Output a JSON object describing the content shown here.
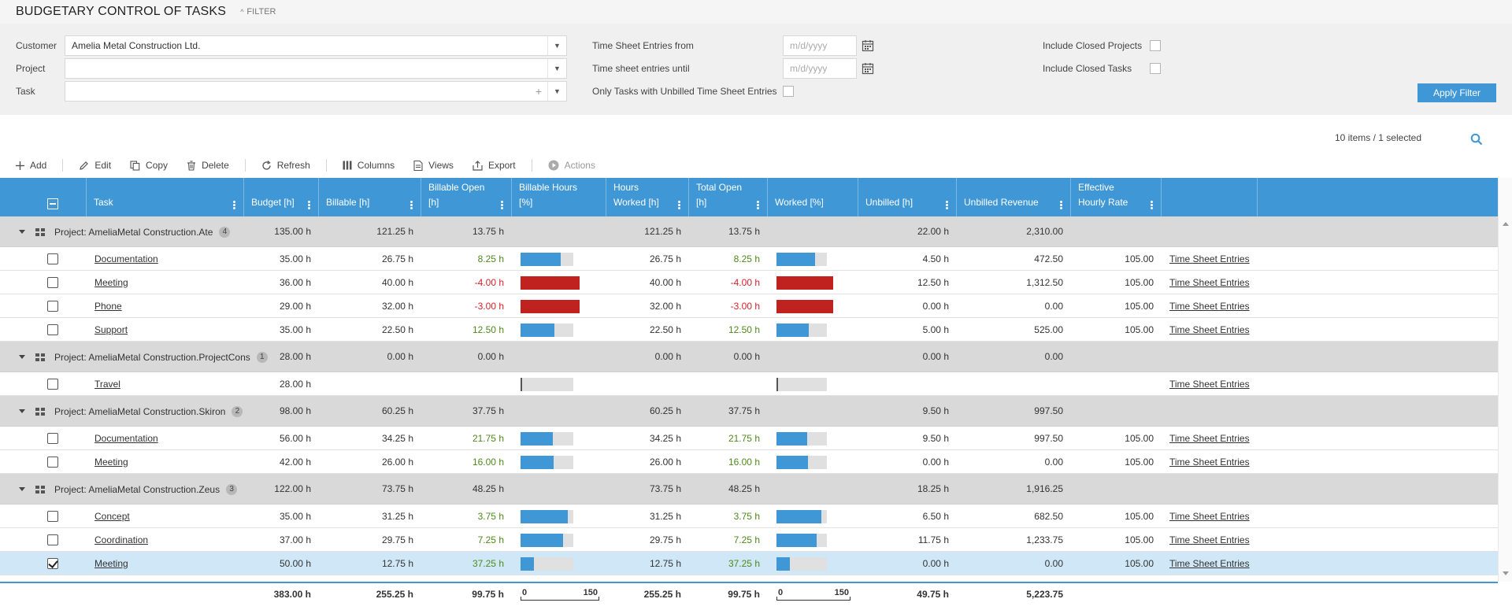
{
  "title": "BUDGETARY CONTROL OF TASKS",
  "filter_toggle": "FILTER",
  "filters": {
    "customer_label": "Customer",
    "customer_value": "Amelia Metal Construction Ltd.",
    "project_label": "Project",
    "project_value": "",
    "task_label": "Task",
    "task_value": "",
    "ts_from_label": "Time Sheet Entries from",
    "ts_until_label": "Time sheet entries until",
    "date_placeholder": "m/d/yyyy",
    "unbilled_only_label": "Only Tasks with Unbilled Time Sheet Entries",
    "closed_projects_label": "Include Closed Projects",
    "closed_tasks_label": "Include Closed Tasks",
    "apply_label": "Apply Filter"
  },
  "items_count": "10 items / 1 selected",
  "toolbar": {
    "add": "Add",
    "edit": "Edit",
    "copy": "Copy",
    "delete": "Delete",
    "refresh": "Refresh",
    "columns": "Columns",
    "views": "Views",
    "export": "Export",
    "actions": "Actions"
  },
  "columns": {
    "task": "Task",
    "budget": "Budget [h]",
    "billable": "Billable [h]",
    "billable_open_1": "Billable Open",
    "billable_open_2": "[h]",
    "billable_hours_1": "Billable Hours",
    "billable_hours_2": "[%]",
    "hours_worked_1": "Hours",
    "hours_worked_2": "Worked [h]",
    "total_open_1": "Total Open",
    "total_open_2": "[h]",
    "worked_pct": "Worked [%]",
    "unbilled": "Unbilled [h]",
    "unbilled_revenue": "Unbilled Revenue",
    "rate_1": "Effective",
    "rate_2": "Hourly Rate"
  },
  "link_label": "Time Sheet Entries",
  "groups": [
    {
      "title": "Project: AmeliaMetal Construction.Ate",
      "count": "4",
      "budget": "135.00 h",
      "billable": "121.25 h",
      "billable_open": "13.75 h",
      "hours_worked": "121.25 h",
      "total_open": "13.75 h",
      "unbilled": "22.00 h",
      "unbilled_revenue": "2,310.00",
      "tasks": [
        {
          "name": "Documentation",
          "budget": "35.00 h",
          "billable": "26.75 h",
          "billable_open": "8.25 h",
          "billable_pct": 0.76,
          "hours_worked": "26.75 h",
          "total_open": "8.25 h",
          "worked_pct": 0.76,
          "unbilled": "4.50 h",
          "unbilled_revenue": "472.50",
          "rate": "105.00",
          "checked": false
        },
        {
          "name": "Meeting",
          "budget": "36.00 h",
          "billable": "40.00 h",
          "billable_open": "-4.00 h",
          "billable_pct": 1.11,
          "hours_worked": "40.00 h",
          "total_open": "-4.00 h",
          "worked_pct": 1.11,
          "unbilled": "12.50 h",
          "unbilled_revenue": "1,312.50",
          "rate": "105.00",
          "checked": false
        },
        {
          "name": "Phone",
          "budget": "29.00 h",
          "billable": "32.00 h",
          "billable_open": "-3.00 h",
          "billable_pct": 1.1,
          "hours_worked": "32.00 h",
          "total_open": "-3.00 h",
          "worked_pct": 1.1,
          "unbilled": "0.00 h",
          "unbilled_revenue": "0.00",
          "rate": "105.00",
          "checked": false
        },
        {
          "name": "Support",
          "budget": "35.00 h",
          "billable": "22.50 h",
          "billable_open": "12.50 h",
          "billable_pct": 0.64,
          "hours_worked": "22.50 h",
          "total_open": "12.50 h",
          "worked_pct": 0.64,
          "unbilled": "5.00 h",
          "unbilled_revenue": "525.00",
          "rate": "105.00",
          "checked": false
        }
      ]
    },
    {
      "title": "Project: AmeliaMetal Construction.ProjectCons",
      "count": "1",
      "budget": "28.00 h",
      "billable": "0.00 h",
      "billable_open": "0.00 h",
      "hours_worked": "0.00 h",
      "total_open": "0.00 h",
      "unbilled": "0.00 h",
      "unbilled_revenue": "0.00",
      "tasks": [
        {
          "name": "Travel",
          "budget": "28.00 h",
          "billable": "",
          "billable_open": "",
          "billable_pct": 0,
          "hours_worked": "",
          "total_open": "",
          "worked_pct": 0,
          "unbilled": "",
          "unbilled_revenue": "",
          "rate": "",
          "checked": false
        }
      ]
    },
    {
      "title": "Project: AmeliaMetal Construction.Skiron",
      "count": "2",
      "budget": "98.00 h",
      "billable": "60.25 h",
      "billable_open": "37.75 h",
      "hours_worked": "60.25 h",
      "total_open": "37.75 h",
      "unbilled": "9.50 h",
      "unbilled_revenue": "997.50",
      "tasks": [
        {
          "name": "Documentation",
          "budget": "56.00 h",
          "billable": "34.25 h",
          "billable_open": "21.75 h",
          "billable_pct": 0.61,
          "hours_worked": "34.25 h",
          "total_open": "21.75 h",
          "worked_pct": 0.61,
          "unbilled": "9.50 h",
          "unbilled_revenue": "997.50",
          "rate": "105.00",
          "checked": false
        },
        {
          "name": "Meeting",
          "budget": "42.00 h",
          "billable": "26.00 h",
          "billable_open": "16.00 h",
          "billable_pct": 0.62,
          "hours_worked": "26.00 h",
          "total_open": "16.00 h",
          "worked_pct": 0.62,
          "unbilled": "0.00 h",
          "unbilled_revenue": "0.00",
          "rate": "105.00",
          "checked": false
        }
      ]
    },
    {
      "title": "Project: AmeliaMetal Construction.Zeus",
      "count": "3",
      "budget": "122.00 h",
      "billable": "73.75 h",
      "billable_open": "48.25 h",
      "hours_worked": "73.75 h",
      "total_open": "48.25 h",
      "unbilled": "18.25 h",
      "unbilled_revenue": "1,916.25",
      "tasks": [
        {
          "name": "Concept",
          "budget": "35.00 h",
          "billable": "31.25 h",
          "billable_open": "3.75 h",
          "billable_pct": 0.89,
          "hours_worked": "31.25 h",
          "total_open": "3.75 h",
          "worked_pct": 0.89,
          "unbilled": "6.50 h",
          "unbilled_revenue": "682.50",
          "rate": "105.00",
          "checked": false
        },
        {
          "name": "Coordination",
          "budget": "37.00 h",
          "billable": "29.75 h",
          "billable_open": "7.25 h",
          "billable_pct": 0.8,
          "hours_worked": "29.75 h",
          "total_open": "7.25 h",
          "worked_pct": 0.8,
          "unbilled": "11.75 h",
          "unbilled_revenue": "1,233.75",
          "rate": "105.00",
          "checked": false
        },
        {
          "name": "Meeting",
          "budget": "50.00 h",
          "billable": "12.75 h",
          "billable_open": "37.25 h",
          "billable_pct": 0.26,
          "hours_worked": "12.75 h",
          "total_open": "37.25 h",
          "worked_pct": 0.26,
          "unbilled": "0.00 h",
          "unbilled_revenue": "0.00",
          "rate": "105.00",
          "checked": true
        }
      ]
    }
  ],
  "totals": {
    "budget": "383.00 h",
    "billable": "255.25 h",
    "billable_open": "99.75 h",
    "scale_min": "0",
    "scale_max": "150",
    "hours_worked": "255.25 h",
    "total_open": "99.75 h",
    "unbilled": "49.75 h",
    "unbilled_revenue": "5,223.75"
  },
  "colors": {
    "accent": "#3f97d6",
    "bar_ok": "#3f97d6",
    "bar_over": "#c0231f",
    "open_positive": "#4e8a1c",
    "open_negative": "#d9202b"
  }
}
